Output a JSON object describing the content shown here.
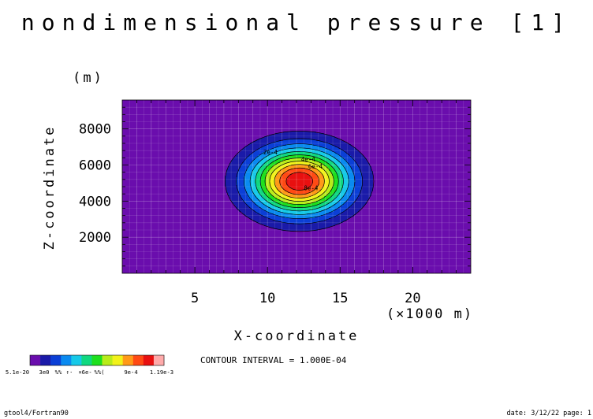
{
  "chart_data": {
    "type": "heatmap",
    "title": "nondimensional pressure [1]",
    "xlabel": "X-coordinate",
    "ylabel": "Z-coordinate",
    "x_unit": "(×1000 m)",
    "y_unit": "(m)",
    "xlim": [
      0,
      24
    ],
    "ylim": [
      0,
      9600
    ],
    "x_ticks": [
      5,
      10,
      15,
      20
    ],
    "y_ticks": [
      2000,
      4000,
      6000,
      8000
    ],
    "grid": true,
    "contour_interval_label": "CONTOUR INTERVAL = 1.000E-04",
    "field": {
      "shape": "gaussian",
      "center_x": 12.2,
      "center_z": 5100,
      "sigma_x": 2.3,
      "sigma_z": 1250,
      "min": 5.1e-20,
      "max": 0.00119
    },
    "contour_levels": [
      0.0001,
      0.0002,
      0.0003,
      0.0004,
      0.0005,
      0.0006,
      0.0007,
      0.0008,
      0.0009,
      0.001,
      0.0011
    ],
    "contour_labels": [
      {
        "text": "4e-4",
        "x": 12.8,
        "z": 6200
      },
      {
        "text": "6e-4",
        "x": 13.3,
        "z": 5800
      },
      {
        "text": "8e-4",
        "x": 13.0,
        "z": 4600
      },
      {
        "text": "2e-4",
        "x": 10.2,
        "z": 6600
      }
    ],
    "colorbar": {
      "colors": [
        "#6a0dad",
        "#1a1aa8",
        "#0b3fd6",
        "#0a8af0",
        "#16c9e8",
        "#10d880",
        "#1ee01e",
        "#b8ec1a",
        "#f2f21a",
        "#ff9a18",
        "#ff4a14",
        "#e81010",
        "#ffaaaa"
      ],
      "labels": [
        "5.1e-20",
        "3e0",
        "%%",
        "↑·",
        "¤6e-",
        "%%(",
        "9e-4",
        "1.19e-3"
      ]
    }
  },
  "footer": {
    "left": "gtool4/Fortran90",
    "right": "date: 3/12/22 page: 1"
  }
}
